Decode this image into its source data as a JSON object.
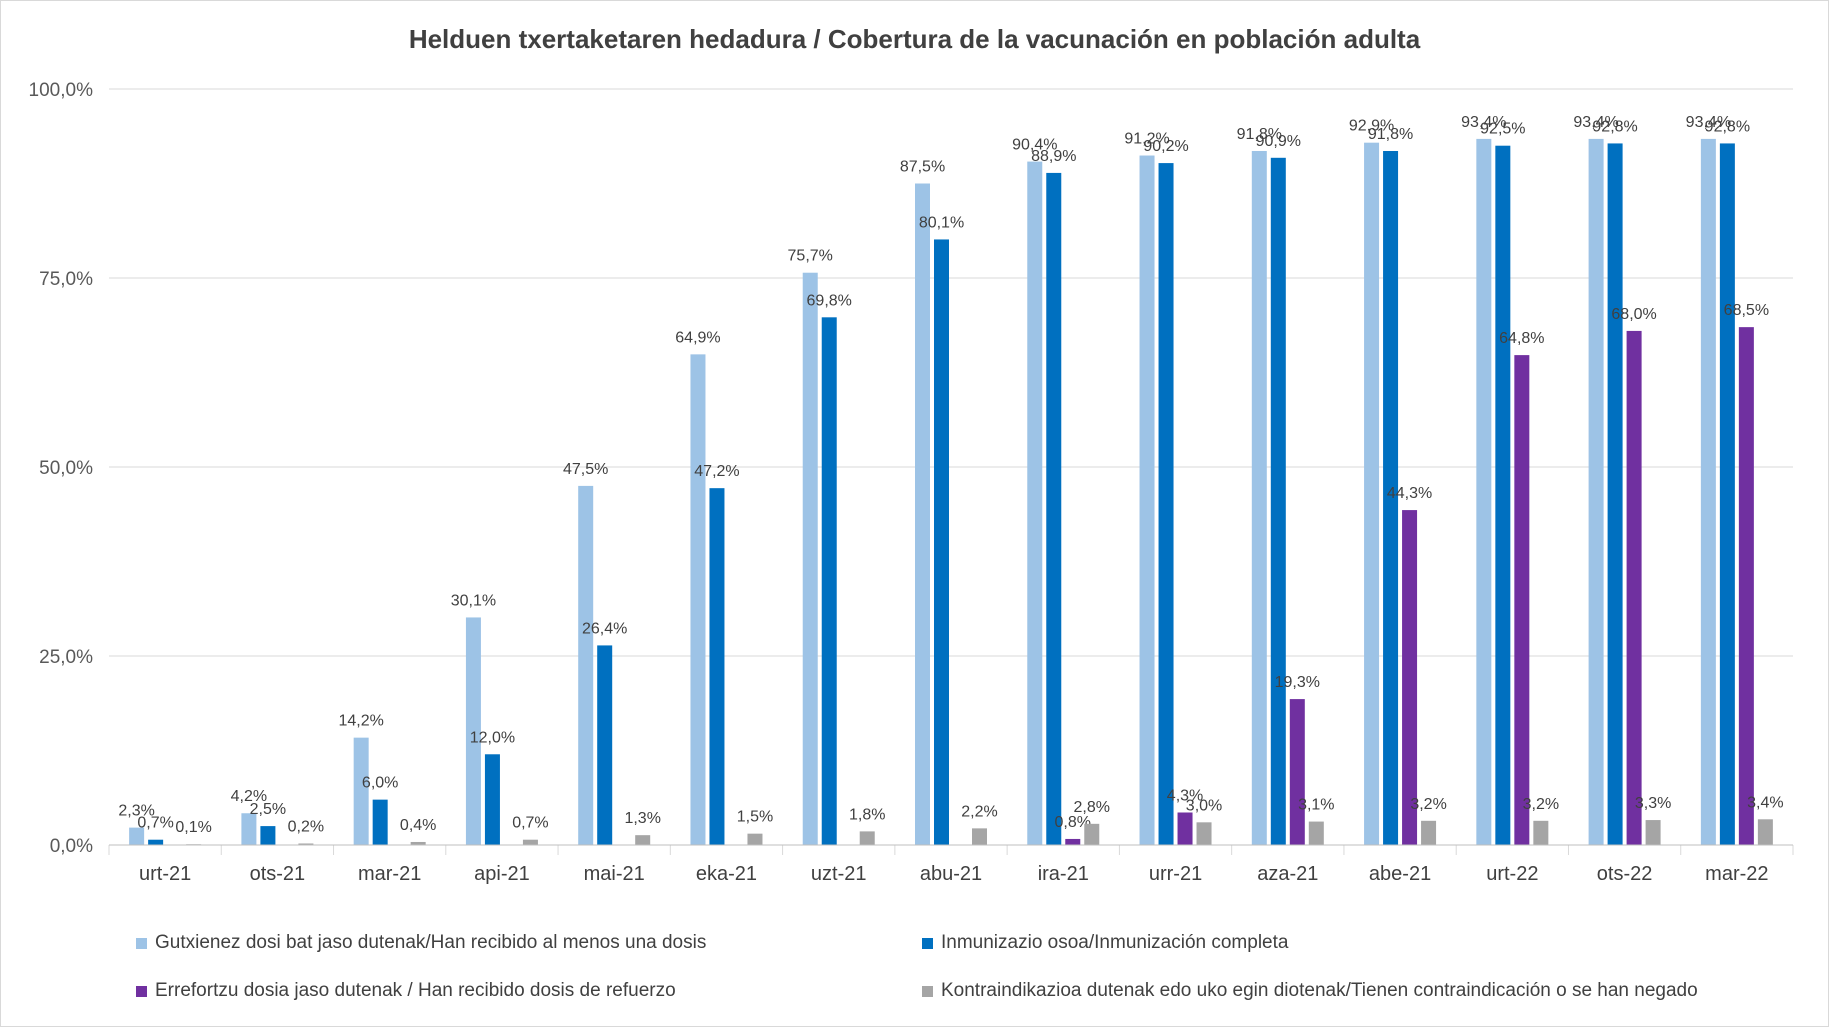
{
  "chart_data": {
    "type": "bar",
    "title": "Helduen txertaketaren hedadura / Cobertura de la vacunación en población adulta",
    "xlabel": "",
    "ylabel": "",
    "ylim": [
      0,
      100
    ],
    "yticks": [
      "0,0%",
      "25,0%",
      "50,0%",
      "75,0%",
      "100,0%"
    ],
    "ytick_values": [
      0,
      25,
      50,
      75,
      100
    ],
    "grid": true,
    "legend_position": "bottom",
    "categories": [
      "urt-21",
      "ots-21",
      "mar-21",
      "api-21",
      "mai-21",
      "eka-21",
      "uzt-21",
      "abu-21",
      "ira-21",
      "urr-21",
      "aza-21",
      "abe-21",
      "urt-22",
      "ots-22",
      "mar-22"
    ],
    "series": [
      {
        "name": "Gutxienez dosi bat jaso dutenak/Han recibido al menos una dosis",
        "color": "#9dc3e6",
        "values": [
          2.3,
          4.2,
          14.2,
          30.1,
          47.5,
          64.9,
          75.7,
          87.5,
          90.4,
          91.2,
          91.8,
          92.9,
          93.4,
          93.4,
          93.4
        ],
        "labels": [
          "2,3%",
          "4,2%",
          "14,2%",
          "30,1%",
          "47,5%",
          "64,9%",
          "75,7%",
          "87,5%",
          "90,4%",
          "91,2%",
          "91,8%",
          "92,9%",
          "93,4%",
          "93,4%",
          "93,4%"
        ]
      },
      {
        "name": "Inmunizazio osoa/Inmunización completa",
        "color": "#0070c0",
        "values": [
          0.7,
          2.5,
          6.0,
          12.0,
          26.4,
          47.2,
          69.8,
          80.1,
          88.9,
          90.2,
          90.9,
          91.8,
          92.5,
          92.8,
          92.8
        ],
        "labels": [
          "0,7%",
          "2,5%",
          "6,0%",
          "12,0%",
          "26,4%",
          "47,2%",
          "69,8%",
          "80,1%",
          "88,9%",
          "90,2%",
          "90,9%",
          "91,8%",
          "92,5%",
          "92,8%",
          "92,8%"
        ]
      },
      {
        "name": "Errefortzu dosia jaso dutenak / Han recibido dosis de refuerzo",
        "color": "#7030a0",
        "values": [
          null,
          null,
          null,
          null,
          null,
          null,
          null,
          null,
          0.8,
          4.3,
          19.3,
          44.3,
          64.8,
          68.0,
          68.5
        ],
        "labels": [
          null,
          null,
          null,
          null,
          null,
          null,
          null,
          null,
          "0,8%",
          "4,3%",
          "19,3%",
          "44,3%",
          "64,8%",
          "68,0%",
          "68,5%"
        ]
      },
      {
        "name": "Kontraindikazioa dutenak edo uko egin diotenak/Tienen contraindicación o se han negado",
        "color": "#a5a5a5",
        "values": [
          0.1,
          0.2,
          0.4,
          0.7,
          1.3,
          1.5,
          1.8,
          2.2,
          2.8,
          3.0,
          3.1,
          3.2,
          3.2,
          3.3,
          3.4
        ],
        "labels": [
          "0,1%",
          "0,2%",
          "0,4%",
          "0,7%",
          "1,3%",
          "1,5%",
          "1,8%",
          "2,2%",
          "2,8%",
          "3,0%",
          "3,1%",
          "3,2%",
          "3,2%",
          "3,3%",
          "3,4%"
        ]
      }
    ]
  }
}
